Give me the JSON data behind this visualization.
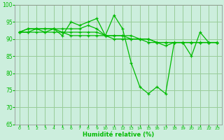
{
  "xlabel": "Humidité relative (%)",
  "background_color": "#cceedd",
  "grid_color": "#99cc99",
  "line_color": "#00bb00",
  "ylim": [
    65,
    100
  ],
  "xlim": [
    -0.5,
    23.5
  ],
  "yticks": [
    65,
    70,
    75,
    80,
    85,
    90,
    95,
    100
  ],
  "xticks": [
    0,
    1,
    2,
    3,
    4,
    5,
    6,
    7,
    8,
    9,
    10,
    11,
    12,
    13,
    14,
    15,
    16,
    17,
    18,
    19,
    20,
    21,
    22,
    23
  ],
  "series": [
    [
      92,
      93,
      93,
      93,
      93,
      91,
      95,
      94,
      95,
      96,
      91,
      97,
      93,
      83,
      76,
      74,
      76,
      74,
      89,
      89,
      85,
      92,
      89,
      89
    ],
    [
      92,
      93,
      93,
      93,
      93,
      93,
      93,
      93,
      94,
      93,
      91,
      91,
      91,
      91,
      90,
      90,
      89,
      88,
      89,
      89,
      89,
      89,
      89,
      89
    ],
    [
      92,
      92,
      93,
      92,
      93,
      92,
      92,
      92,
      92,
      92,
      91,
      91,
      91,
      90,
      90,
      90,
      89,
      89,
      89,
      89,
      89,
      89,
      89,
      89
    ],
    [
      92,
      92,
      92,
      92,
      92,
      92,
      91,
      91,
      91,
      91,
      91,
      90,
      90,
      90,
      90,
      89,
      89,
      89,
      89,
      89,
      89,
      89,
      89,
      89
    ]
  ]
}
